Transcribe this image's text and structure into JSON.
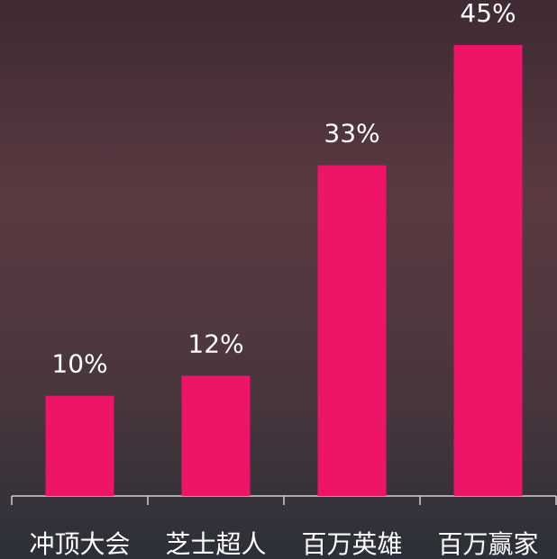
{
  "chart_data": {
    "type": "bar",
    "categories": [
      "冲顶大会",
      "芝士超人",
      "百万英雄",
      "百万赢家"
    ],
    "values": [
      10,
      12,
      33,
      45
    ],
    "value_labels": [
      "10%",
      "12%",
      "33%",
      "45%"
    ],
    "color": "#ee1467"
  }
}
